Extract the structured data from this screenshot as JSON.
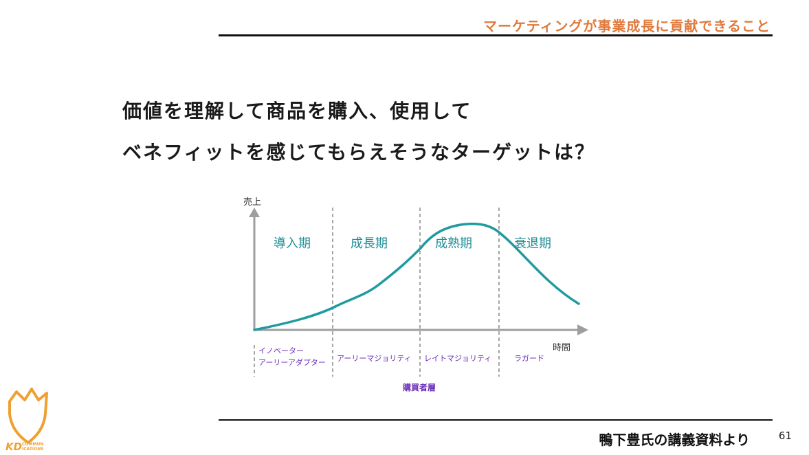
{
  "header": {
    "title": "マーケティングが事業成長に貢献できること"
  },
  "heading": {
    "line1": "価値を理解して商品を購入、使用して",
    "line2": "ベネフィットを感じてもらえそうなターゲットは？"
  },
  "diagram": {
    "y_axis_label": "売上",
    "x_axis_label": "時間",
    "stages": [
      "導入期",
      "成長期",
      "成熟期",
      "衰退期"
    ],
    "buyer_groups": [
      [
        "イノベーター",
        "アーリーアダプター"
      ],
      [
        "アーリーマジョリティ"
      ],
      [
        "レイトマジョリティ"
      ],
      [
        "ラガード"
      ]
    ],
    "buyer_group_title": "購買者層"
  },
  "footer": {
    "source": "鴨下豊氏の講義資料より",
    "page": "61"
  },
  "logo": {
    "text_top": "COMMUN",
    "text_bottom": "KD",
    "text_small": "ICATIONS"
  },
  "colors": {
    "accent_orange": "#e07a3c",
    "curve_teal": "#1f9aa0",
    "purple": "#6a2fb8",
    "axis_gray": "#999999"
  }
}
